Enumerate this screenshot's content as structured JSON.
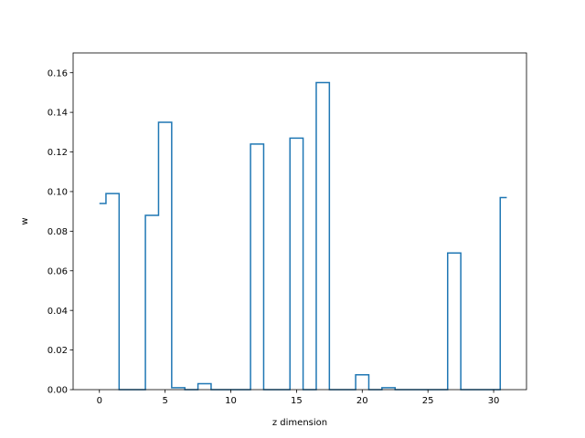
{
  "chart_data": {
    "type": "line",
    "drawstyle": "steps-mid",
    "title": "",
    "xlabel": "z dimension",
    "ylabel": "w",
    "xlim": [
      -2,
      32.5
    ],
    "ylim": [
      0,
      0.17
    ],
    "xticks": [
      0,
      5,
      10,
      15,
      20,
      25,
      30
    ],
    "yticks": [
      0.0,
      0.02,
      0.04,
      0.06,
      0.08,
      0.1,
      0.12,
      0.14,
      0.16
    ],
    "ytick_labels": [
      "0.00",
      "0.02",
      "0.04",
      "0.06",
      "0.08",
      "0.10",
      "0.12",
      "0.14",
      "0.16"
    ],
    "xtick_labels": [
      "0",
      "5",
      "10",
      "15",
      "20",
      "25",
      "30"
    ],
    "grid": false,
    "line_color": "#1f77b4",
    "series": [
      {
        "x": [
          0,
          1,
          2,
          3,
          4,
          5,
          6,
          7,
          8,
          9,
          10,
          11,
          12,
          13,
          14,
          15,
          16,
          17,
          18,
          19,
          20,
          21,
          22,
          23,
          24,
          25,
          26,
          27,
          28,
          29,
          30,
          31
        ],
        "values": [
          0.094,
          0.099,
          0.0,
          0.0,
          0.088,
          0.135,
          0.001,
          0.0,
          0.003,
          0.0,
          0.0,
          0.0,
          0.124,
          0.0,
          0.0,
          0.127,
          0.0,
          0.155,
          0.0,
          0.0,
          0.0075,
          0.0,
          0.001,
          0.0,
          0.0,
          0.0,
          0.0,
          0.069,
          0.0,
          0.0,
          0.0,
          0.097
        ]
      }
    ]
  }
}
